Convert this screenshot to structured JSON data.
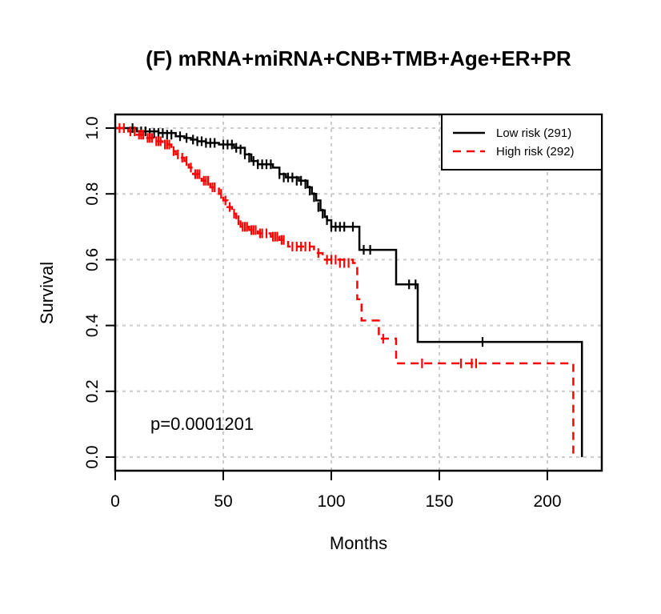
{
  "chart_data": {
    "type": "line",
    "title": "(F) mRNA+miRNA+CNB+TMB+Age+ER+PR",
    "xlabel": "Months",
    "ylabel": "Survival",
    "xlim": [
      0,
      225
    ],
    "ylim": [
      0,
      1.0
    ],
    "x_ticks": [
      "0",
      "50",
      "100",
      "150",
      "200"
    ],
    "y_ticks": [
      "0.0",
      "0.2",
      "0.4",
      "0.6",
      "0.8",
      "1.0"
    ],
    "grid": true,
    "legend_position": "top-right",
    "annotation": "p=0.0001201",
    "series": [
      {
        "name": "Low risk (291)",
        "color": "#000000",
        "style": "solid",
        "steps": [
          [
            0,
            1.0
          ],
          [
            5,
            1.0
          ],
          [
            10,
            0.99
          ],
          [
            20,
            0.985
          ],
          [
            28,
            0.975
          ],
          [
            32,
            0.97
          ],
          [
            35,
            0.965
          ],
          [
            38,
            0.96
          ],
          [
            42,
            0.955
          ],
          [
            48,
            0.95
          ],
          [
            55,
            0.94
          ],
          [
            60,
            0.92
          ],
          [
            63,
            0.9
          ],
          [
            66,
            0.89
          ],
          [
            73,
            0.88
          ],
          [
            76,
            0.86
          ],
          [
            79,
            0.85
          ],
          [
            85,
            0.84
          ],
          [
            89,
            0.82
          ],
          [
            91,
            0.8
          ],
          [
            93,
            0.78
          ],
          [
            95,
            0.75
          ],
          [
            97,
            0.73
          ],
          [
            98,
            0.72
          ],
          [
            100,
            0.7
          ],
          [
            113,
            0.63
          ],
          [
            130,
            0.525
          ],
          [
            140,
            0.35
          ],
          [
            216,
            0.0
          ]
        ],
        "censors": [
          [
            8,
            1.0
          ],
          [
            12,
            0.99
          ],
          [
            14,
            0.99
          ],
          [
            16,
            0.985
          ],
          [
            18,
            0.985
          ],
          [
            20,
            0.985
          ],
          [
            22,
            0.985
          ],
          [
            24,
            0.98
          ],
          [
            26,
            0.98
          ],
          [
            30,
            0.975
          ],
          [
            33,
            0.97
          ],
          [
            36,
            0.965
          ],
          [
            38,
            0.96
          ],
          [
            40,
            0.96
          ],
          [
            42,
            0.955
          ],
          [
            44,
            0.955
          ],
          [
            46,
            0.955
          ],
          [
            50,
            0.95
          ],
          [
            52,
            0.95
          ],
          [
            54,
            0.95
          ],
          [
            56,
            0.94
          ],
          [
            58,
            0.935
          ],
          [
            60,
            0.92
          ],
          [
            62,
            0.91
          ],
          [
            64,
            0.9
          ],
          [
            66,
            0.89
          ],
          [
            68,
            0.89
          ],
          [
            70,
            0.89
          ],
          [
            72,
            0.89
          ],
          [
            76,
            0.86
          ],
          [
            78,
            0.85
          ],
          [
            80,
            0.85
          ],
          [
            82,
            0.85
          ],
          [
            84,
            0.84
          ],
          [
            86,
            0.84
          ],
          [
            88,
            0.83
          ],
          [
            90,
            0.81
          ],
          [
            92,
            0.79
          ],
          [
            94,
            0.76
          ],
          [
            96,
            0.74
          ],
          [
            98,
            0.72
          ],
          [
            100,
            0.7
          ],
          [
            102,
            0.7
          ],
          [
            104,
            0.7
          ],
          [
            106,
            0.7
          ],
          [
            110,
            0.7
          ],
          [
            115,
            0.63
          ],
          [
            118,
            0.63
          ],
          [
            136,
            0.525
          ],
          [
            139,
            0.525
          ],
          [
            170,
            0.35
          ]
        ]
      },
      {
        "name": "High risk (292)",
        "color": "#ff0000",
        "style": "dashed",
        "steps": [
          [
            0,
            1.0
          ],
          [
            6,
            0.99
          ],
          [
            10,
            0.98
          ],
          [
            14,
            0.97
          ],
          [
            18,
            0.96
          ],
          [
            22,
            0.95
          ],
          [
            26,
            0.93
          ],
          [
            28,
            0.92
          ],
          [
            30,
            0.91
          ],
          [
            32,
            0.9
          ],
          [
            34,
            0.88
          ],
          [
            36,
            0.86
          ],
          [
            40,
            0.84
          ],
          [
            44,
            0.82
          ],
          [
            48,
            0.8
          ],
          [
            50,
            0.78
          ],
          [
            52,
            0.76
          ],
          [
            54,
            0.74
          ],
          [
            56,
            0.72
          ],
          [
            58,
            0.7
          ],
          [
            62,
            0.69
          ],
          [
            66,
            0.68
          ],
          [
            72,
            0.67
          ],
          [
            76,
            0.66
          ],
          [
            80,
            0.64
          ],
          [
            92,
            0.62
          ],
          [
            96,
            0.6
          ],
          [
            110,
            0.59
          ],
          [
            112,
            0.48
          ],
          [
            114,
            0.415
          ],
          [
            122,
            0.36
          ],
          [
            130,
            0.285
          ],
          [
            212,
            0.0
          ]
        ],
        "censors": [
          [
            2,
            1.0
          ],
          [
            4,
            1.0
          ],
          [
            7,
            0.99
          ],
          [
            9,
            0.99
          ],
          [
            11,
            0.98
          ],
          [
            12,
            0.98
          ],
          [
            13,
            0.98
          ],
          [
            15,
            0.97
          ],
          [
            16,
            0.97
          ],
          [
            17,
            0.97
          ],
          [
            19,
            0.96
          ],
          [
            20,
            0.96
          ],
          [
            21,
            0.96
          ],
          [
            23,
            0.95
          ],
          [
            24,
            0.95
          ],
          [
            25,
            0.95
          ],
          [
            27,
            0.93
          ],
          [
            29,
            0.92
          ],
          [
            31,
            0.91
          ],
          [
            33,
            0.9
          ],
          [
            35,
            0.88
          ],
          [
            37,
            0.86
          ],
          [
            38,
            0.86
          ],
          [
            39,
            0.86
          ],
          [
            41,
            0.84
          ],
          [
            42,
            0.84
          ],
          [
            43,
            0.84
          ],
          [
            45,
            0.82
          ],
          [
            46,
            0.82
          ],
          [
            49,
            0.8
          ],
          [
            51,
            0.78
          ],
          [
            53,
            0.76
          ],
          [
            55,
            0.74
          ],
          [
            57,
            0.72
          ],
          [
            59,
            0.7
          ],
          [
            60,
            0.7
          ],
          [
            61,
            0.7
          ],
          [
            63,
            0.69
          ],
          [
            64,
            0.69
          ],
          [
            65,
            0.69
          ],
          [
            67,
            0.68
          ],
          [
            68,
            0.68
          ],
          [
            70,
            0.68
          ],
          [
            73,
            0.67
          ],
          [
            74,
            0.67
          ],
          [
            75,
            0.67
          ],
          [
            77,
            0.66
          ],
          [
            78,
            0.66
          ],
          [
            82,
            0.64
          ],
          [
            84,
            0.64
          ],
          [
            86,
            0.64
          ],
          [
            88,
            0.64
          ],
          [
            90,
            0.64
          ],
          [
            94,
            0.62
          ],
          [
            98,
            0.6
          ],
          [
            100,
            0.6
          ],
          [
            102,
            0.6
          ],
          [
            104,
            0.59
          ],
          [
            106,
            0.59
          ],
          [
            108,
            0.59
          ],
          [
            124,
            0.36
          ],
          [
            142,
            0.285
          ],
          [
            160,
            0.285
          ],
          [
            165,
            0.285
          ],
          [
            167,
            0.285
          ]
        ]
      }
    ]
  }
}
